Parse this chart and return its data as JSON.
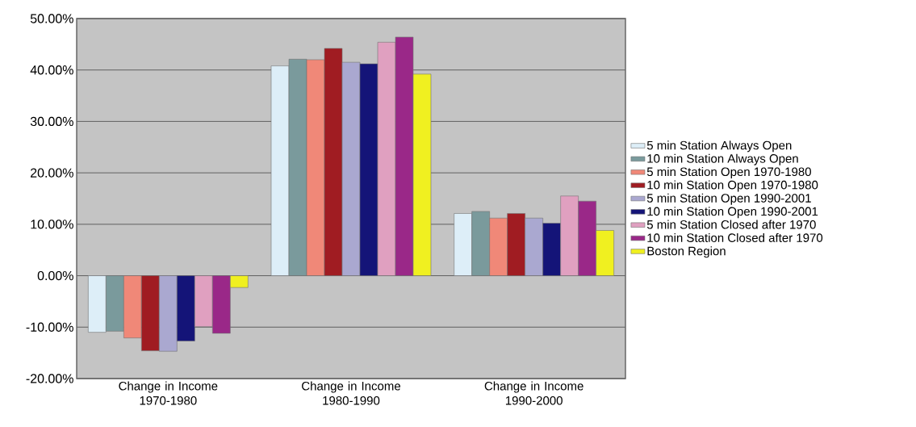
{
  "chart_data": {
    "type": "bar",
    "categories": [
      "Change in Income 1970-1980",
      "Change in Income 1980-1990",
      "Change in Income 1990-2000"
    ],
    "series": [
      {
        "name": "5 min    Station Always Open",
        "color": "#ddeef8",
        "values": [
          -11.0,
          40.8,
          12.1
        ]
      },
      {
        "name": "10 min  Station Always Open",
        "color": "#7a9a9c",
        "values": [
          -10.8,
          42.1,
          12.5
        ]
      },
      {
        "name": "5 min    Station Open 1970-1980",
        "color": "#f08878",
        "values": [
          -12.1,
          42.0,
          11.2
        ]
      },
      {
        "name": "10 min  Station Open 1970-1980",
        "color": "#a01c22",
        "values": [
          -14.6,
          44.2,
          12.1
        ]
      },
      {
        "name": "5 min    Station Open 1990-2001",
        "color": "#aaa8d0",
        "values": [
          -14.7,
          41.5,
          11.2
        ]
      },
      {
        "name": "10 min  Station Open 1990-2001",
        "color": "#141478",
        "values": [
          -12.7,
          41.2,
          10.2
        ]
      },
      {
        "name": "5 min    Station Closed after 1970",
        "color": "#e0a0c0",
        "values": [
          -9.9,
          45.4,
          15.5
        ]
      },
      {
        "name": "10 min  Station Closed after 1970",
        "color": "#9a2888",
        "values": [
          -11.2,
          46.4,
          14.5
        ]
      },
      {
        "name": "Boston Region",
        "color": "#f0f020",
        "values": [
          -2.3,
          39.2,
          8.8
        ]
      }
    ],
    "ylim": [
      -20,
      50
    ],
    "yticks": [
      {
        "value": -20,
        "label": "-20.00%"
      },
      {
        "value": -10,
        "label": "-10.00%"
      },
      {
        "value": 0,
        "label": "0.00%"
      },
      {
        "value": 10,
        "label": "10.00%"
      },
      {
        "value": 20,
        "label": "20.00%"
      },
      {
        "value": 30,
        "label": "30.00%"
      },
      {
        "value": 40,
        "label": "40.00%"
      },
      {
        "value": 50,
        "label": "50.00%"
      }
    ],
    "grid": "y",
    "legend": "right"
  }
}
